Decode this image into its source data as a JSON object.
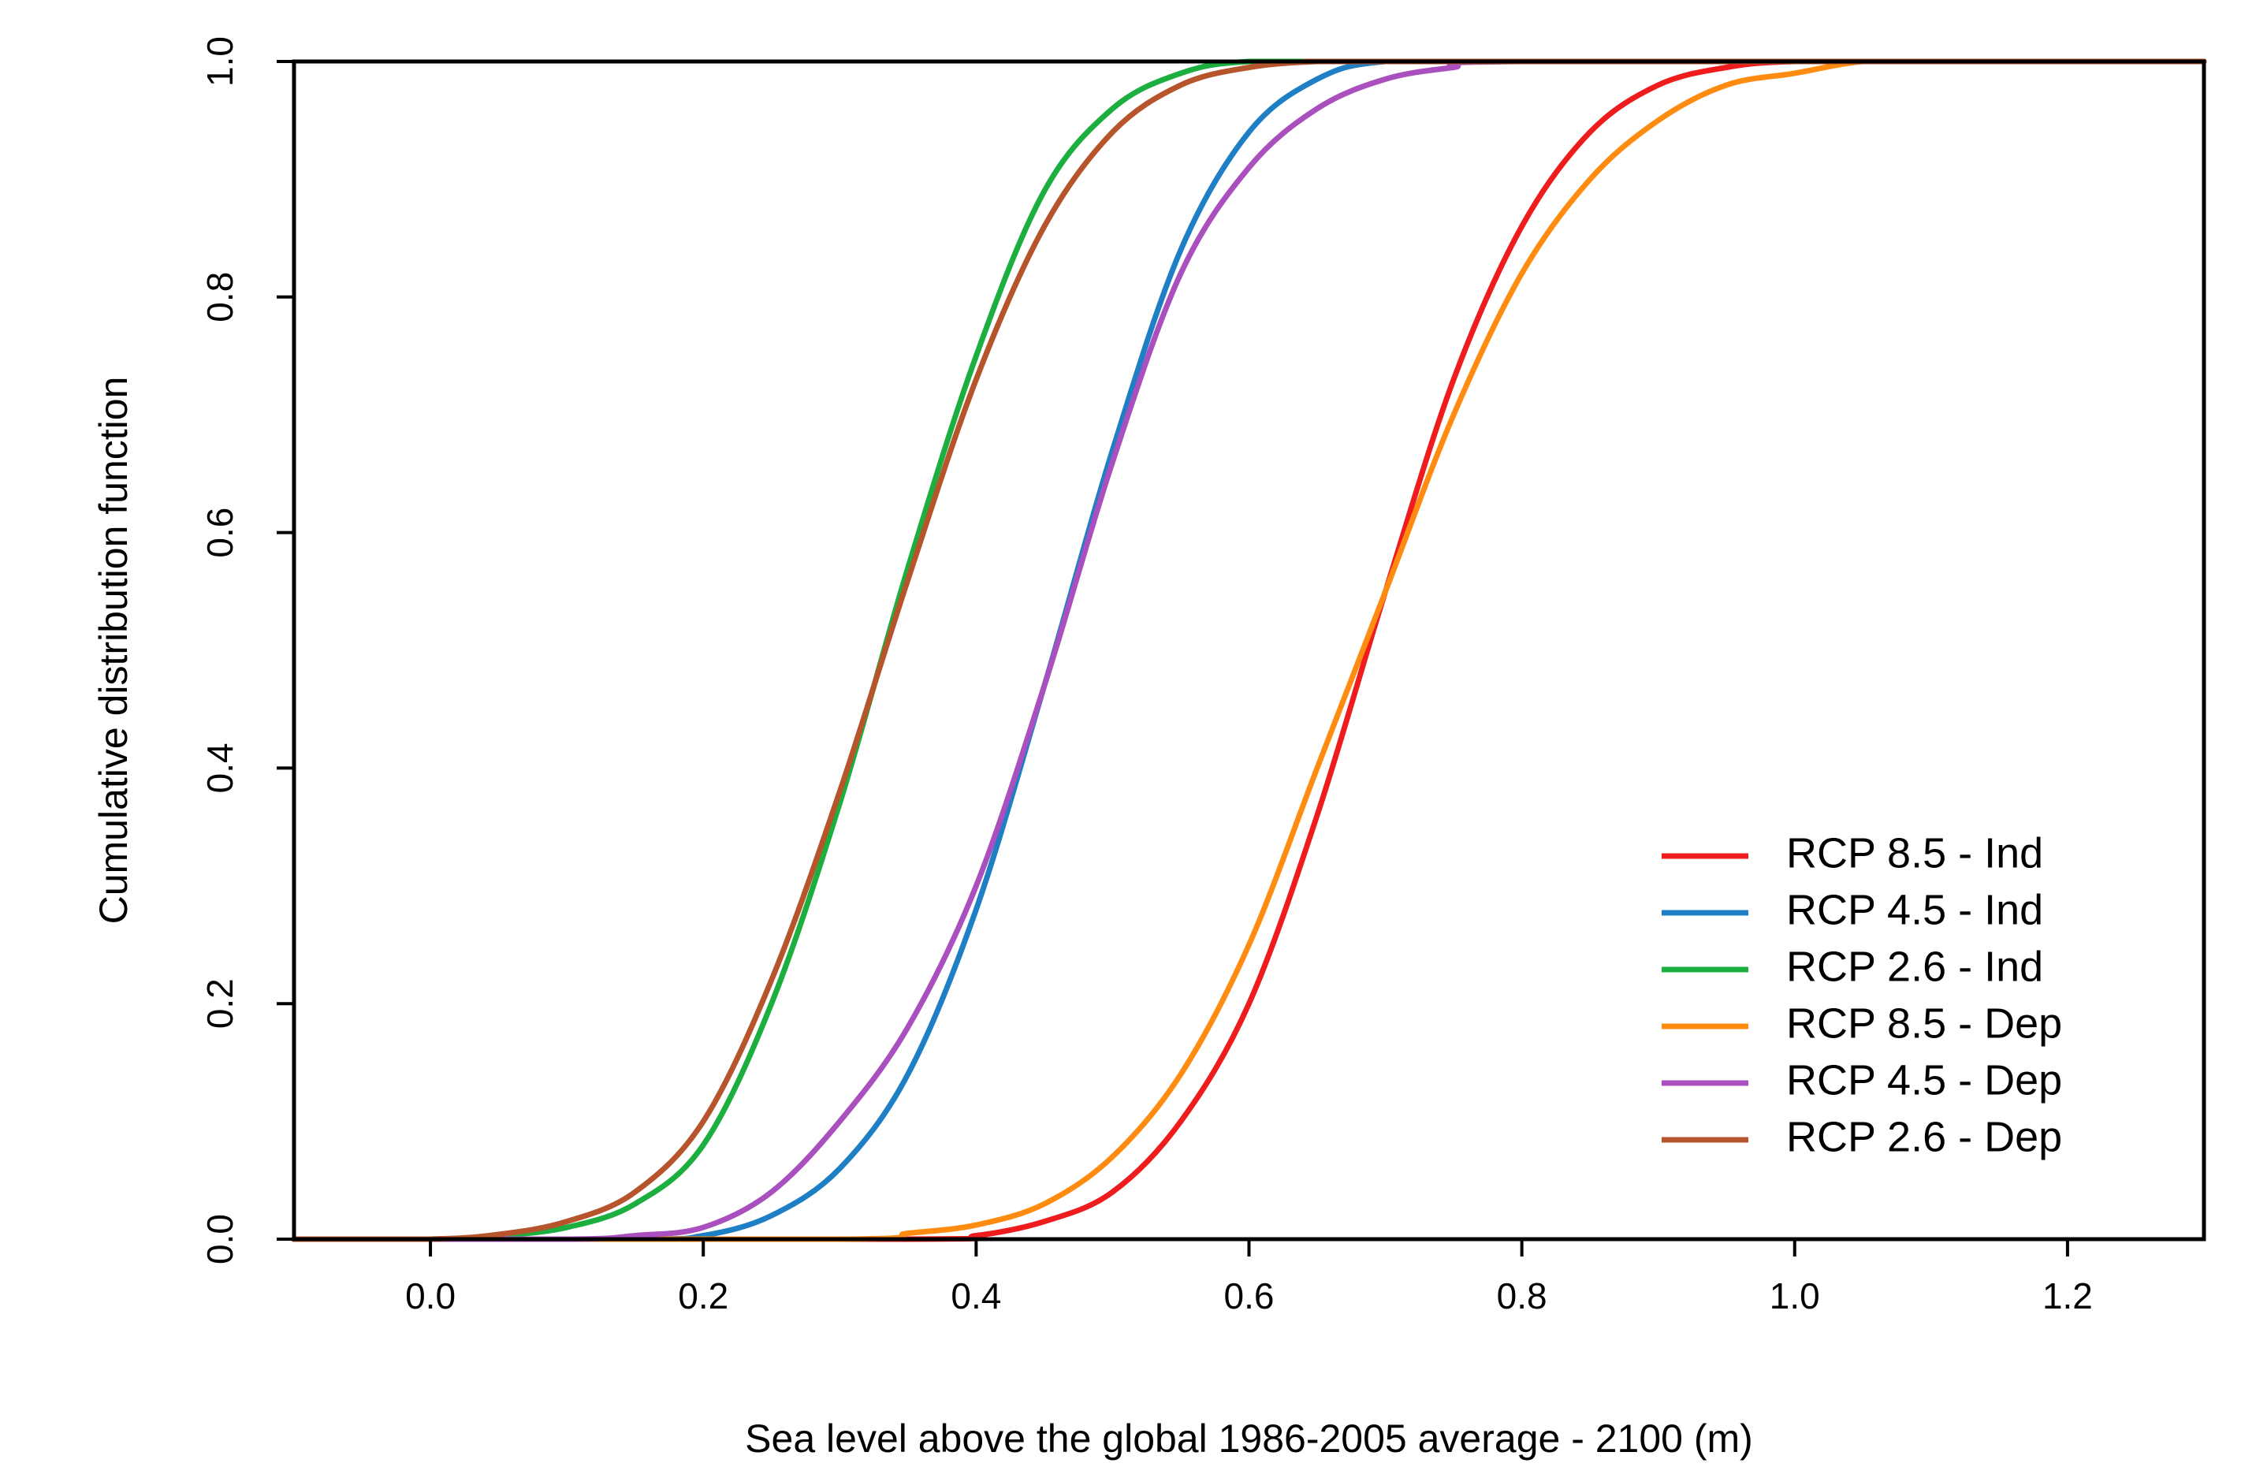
{
  "chart_data": {
    "type": "line",
    "title": "",
    "xlabel": "Sea level above the global 1986-2005 average - 2100 (m)",
    "ylabel": "Cumulative distribution function",
    "xlim": [
      -0.1,
      1.3
    ],
    "ylim": [
      0.0,
      1.0
    ],
    "xticks": [
      0.0,
      0.2,
      0.4,
      0.6,
      0.8,
      1.0,
      1.2
    ],
    "yticks": [
      0.0,
      0.2,
      0.4,
      0.6,
      0.8,
      1.0
    ],
    "xtick_labels": [
      "0.0",
      "0.2",
      "0.4",
      "0.6",
      "0.8",
      "1.0",
      "1.2"
    ],
    "ytick_labels": [
      "0.0",
      "0.2",
      "0.4",
      "0.6",
      "0.8",
      "1.0"
    ],
    "grid": false,
    "legend_position": "bottom-right",
    "series": [
      {
        "name": "RCP 8.5 - Ind",
        "color": "#ee1c1c",
        "x": [
          -0.1,
          0.35,
          0.4,
          0.45,
          0.5,
          0.55,
          0.6,
          0.65,
          0.7,
          0.75,
          0.8,
          0.85,
          0.9,
          0.95,
          1.0,
          1.1,
          1.3
        ],
        "y": [
          0.0,
          0.0,
          0.003,
          0.015,
          0.04,
          0.1,
          0.2,
          0.36,
          0.55,
          0.73,
          0.86,
          0.94,
          0.98,
          0.995,
          1.0,
          1.0,
          1.0
        ]
      },
      {
        "name": "RCP 4.5 - Ind",
        "color": "#1f7fc4",
        "x": [
          -0.1,
          0.15,
          0.2,
          0.25,
          0.3,
          0.35,
          0.4,
          0.45,
          0.5,
          0.55,
          0.6,
          0.65,
          0.7,
          0.8,
          1.3
        ],
        "y": [
          0.0,
          0.0,
          0.003,
          0.02,
          0.06,
          0.14,
          0.28,
          0.47,
          0.67,
          0.84,
          0.94,
          0.985,
          1.0,
          1.0,
          1.0
        ]
      },
      {
        "name": "RCP 2.6 - Ind",
        "color": "#1caf40",
        "x": [
          -0.1,
          0.0,
          0.05,
          0.1,
          0.15,
          0.2,
          0.25,
          0.3,
          0.35,
          0.4,
          0.45,
          0.5,
          0.55,
          0.6,
          0.7,
          1.3
        ],
        "y": [
          0.0,
          0.0,
          0.003,
          0.01,
          0.03,
          0.08,
          0.2,
          0.37,
          0.57,
          0.75,
          0.89,
          0.96,
          0.99,
          1.0,
          1.0,
          1.0
        ]
      },
      {
        "name": "RCP 8.5 - Dep",
        "color": "#ff8c10",
        "x": [
          -0.1,
          0.3,
          0.35,
          0.4,
          0.45,
          0.5,
          0.55,
          0.6,
          0.65,
          0.7,
          0.75,
          0.8,
          0.85,
          0.9,
          0.95,
          1.0,
          1.05,
          1.1,
          1.3
        ],
        "y": [
          0.0,
          0.0,
          0.005,
          0.012,
          0.03,
          0.07,
          0.14,
          0.25,
          0.4,
          0.55,
          0.7,
          0.82,
          0.9,
          0.95,
          0.98,
          0.99,
          1.0,
          1.0,
          1.0
        ]
      },
      {
        "name": "RCP 4.5 - Dep",
        "color": "#a94fbe",
        "x": [
          -0.1,
          0.1,
          0.15,
          0.2,
          0.25,
          0.3,
          0.35,
          0.4,
          0.45,
          0.5,
          0.55,
          0.6,
          0.65,
          0.7,
          0.75,
          0.8,
          1.3
        ],
        "y": [
          0.0,
          0.0,
          0.003,
          0.01,
          0.04,
          0.1,
          0.18,
          0.3,
          0.47,
          0.66,
          0.82,
          0.91,
          0.96,
          0.985,
          0.995,
          1.0,
          1.0
        ]
      },
      {
        "name": "RCP 2.6 - Dep",
        "color": "#b6542c",
        "x": [
          -0.1,
          0.0,
          0.05,
          0.1,
          0.15,
          0.2,
          0.25,
          0.3,
          0.35,
          0.4,
          0.45,
          0.5,
          0.55,
          0.6,
          0.65,
          0.7,
          1.3
        ],
        "y": [
          0.0,
          0.0,
          0.004,
          0.015,
          0.04,
          0.1,
          0.22,
          0.38,
          0.56,
          0.73,
          0.86,
          0.94,
          0.98,
          0.995,
          1.0,
          1.0,
          1.0
        ]
      }
    ]
  }
}
